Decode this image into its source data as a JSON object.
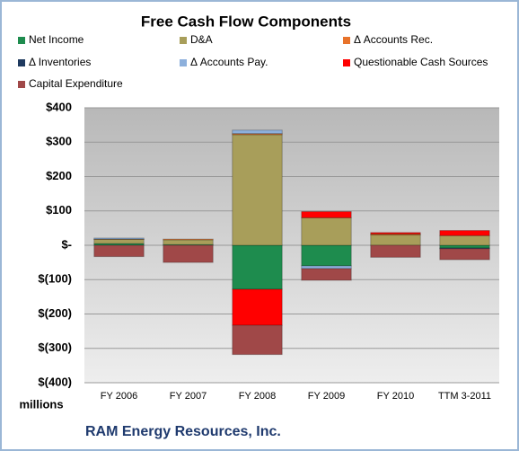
{
  "chart_data": {
    "type": "stacked-bar",
    "title": "Free Cash Flow Components",
    "y_label": "millions",
    "footer": "RAM Energy Resources, Inc.",
    "categories": [
      "FY 2006",
      "FY 2007",
      "FY 2008",
      "FY 2009",
      "FY 2010",
      "TTM 3-2011"
    ],
    "series": [
      {
        "name": "Net Income",
        "color": "#1e8c4e",
        "values": [
          5,
          2,
          -128,
          -60,
          0,
          -8
        ]
      },
      {
        "name": "D&A",
        "color": "#a89e5a",
        "values": [
          12,
          14,
          322,
          80,
          30,
          28
        ]
      },
      {
        "name": "Δ Accounts Rec.",
        "color": "#e8732a",
        "values": [
          1,
          2,
          3,
          0,
          3,
          0
        ]
      },
      {
        "name": "Δ Inventories",
        "color": "#1f3a5f",
        "values": [
          0,
          0,
          0,
          0,
          0,
          -2
        ]
      },
      {
        "name": "Δ Accounts Pay.",
        "color": "#8db0dc",
        "values": [
          3,
          0,
          10,
          -8,
          0,
          0
        ]
      },
      {
        "name": "Questionable Cash Sources",
        "color": "#ff0000",
        "values": [
          0,
          0,
          -105,
          18,
          4,
          15
        ]
      },
      {
        "name": "Capital Expenditure",
        "color": "#a04848",
        "values": [
          -33,
          -50,
          -85,
          -34,
          -35,
          -32
        ]
      }
    ],
    "ylim": [
      -400,
      400
    ],
    "yticks": [
      {
        "value": -400,
        "label": "$(400)"
      },
      {
        "value": -300,
        "label": "$(300)"
      },
      {
        "value": -200,
        "label": "$(200)"
      },
      {
        "value": -100,
        "label": "$(100)"
      },
      {
        "value": 0,
        "label": "$-"
      },
      {
        "value": 100,
        "label": "$100"
      },
      {
        "value": 200,
        "label": "$200"
      },
      {
        "value": 300,
        "label": "$300"
      },
      {
        "value": 400,
        "label": "$400"
      }
    ],
    "grid": true
  }
}
